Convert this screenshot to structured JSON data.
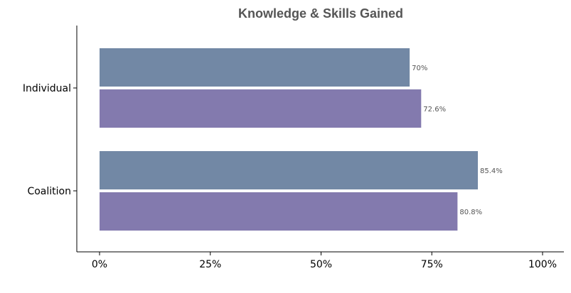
{
  "chart_data": {
    "type": "bar",
    "orientation": "horizontal",
    "title": "Knowledge & Skills Gained",
    "xlabel": "",
    "ylabel": "",
    "categories": [
      "Individual",
      "Coalition"
    ],
    "series": [
      {
        "color": "#7288a5",
        "values": [
          70,
          85.4
        ],
        "labels": [
          "70%",
          "85.4%"
        ]
      },
      {
        "color": "#837aae",
        "values": [
          72.6,
          80.8
        ],
        "labels": [
          "72.6%",
          "80.8%"
        ]
      }
    ],
    "xlim": [
      0,
      100
    ],
    "x_ticks": [
      0,
      25,
      50,
      75,
      100
    ],
    "x_tick_labels": [
      "0%",
      "25%",
      "50%",
      "75%",
      "100%"
    ],
    "grid": false,
    "legend": "none"
  }
}
